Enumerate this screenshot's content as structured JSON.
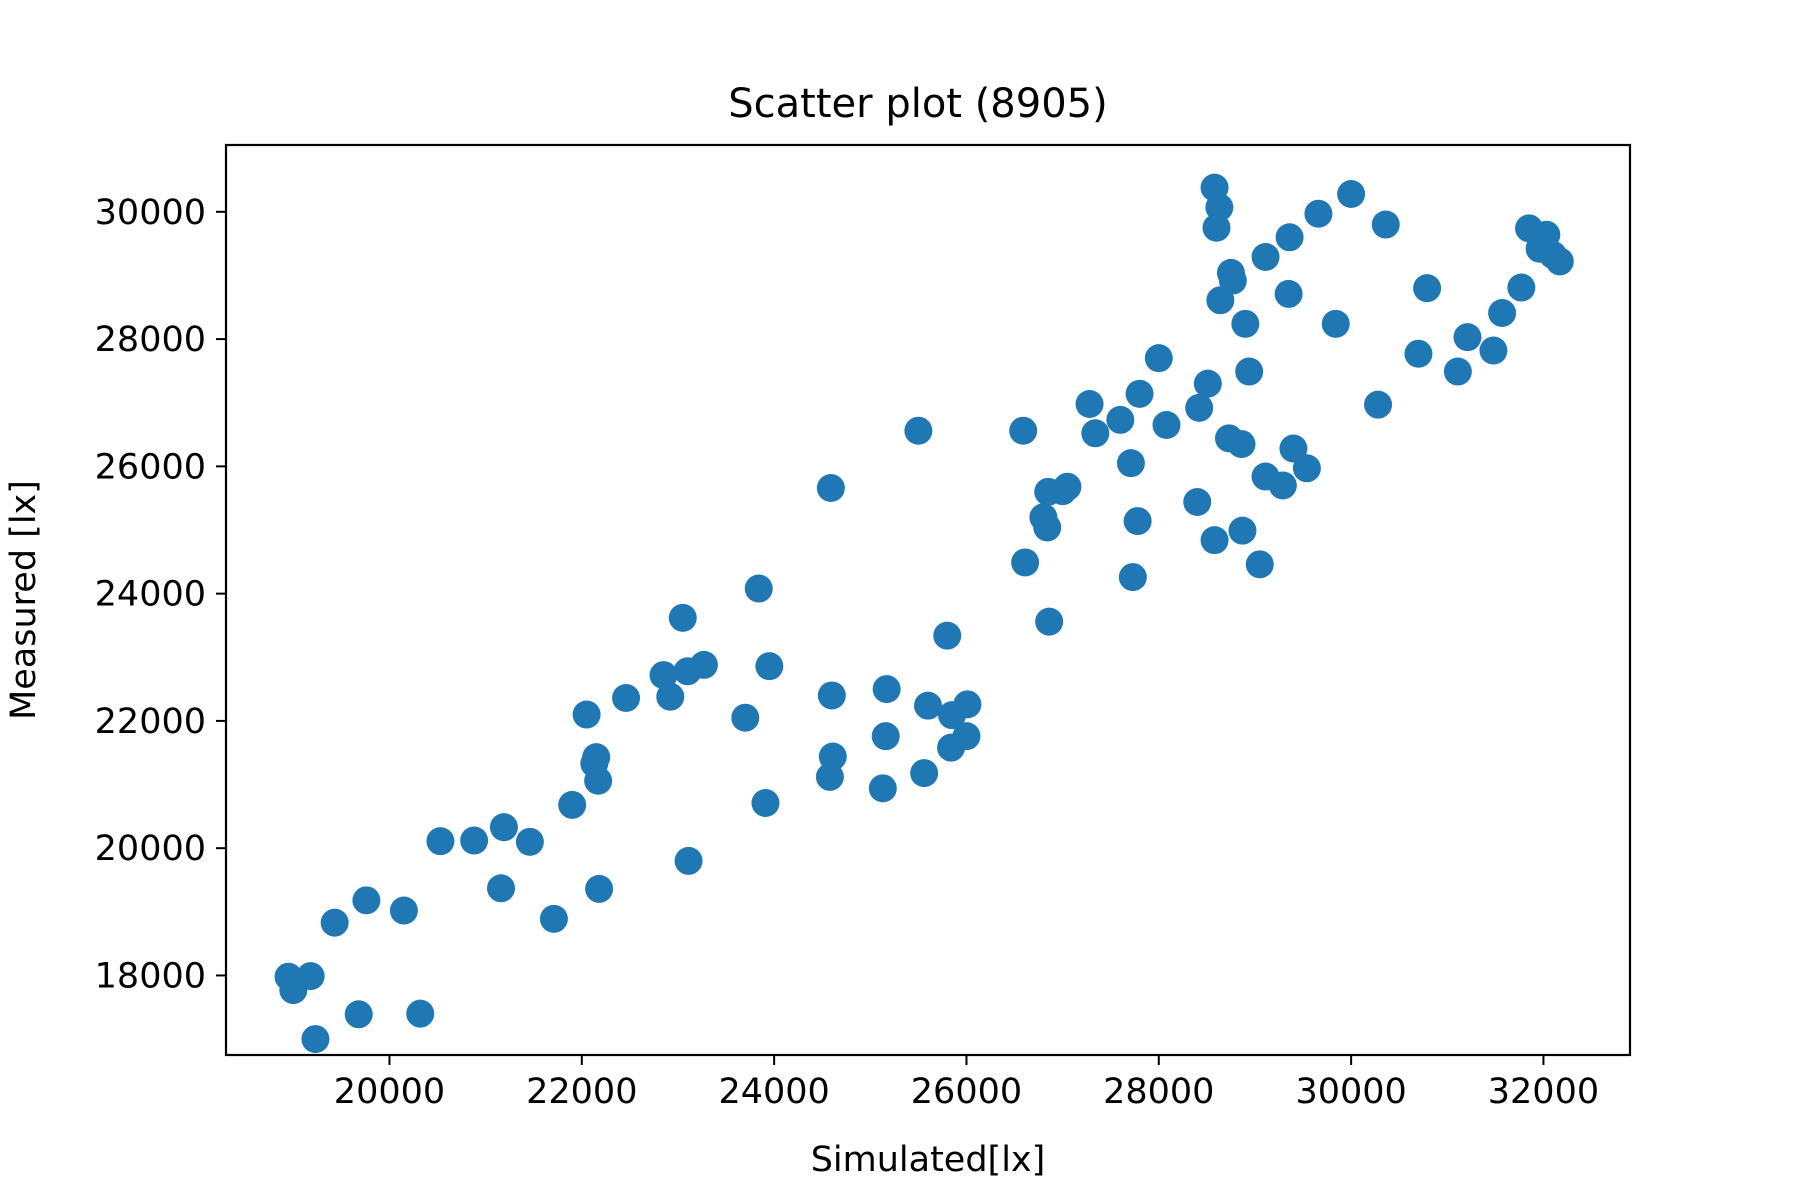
{
  "chart_data": {
    "type": "scatter",
    "title": "Scatter plot (8905)",
    "xlabel": "Simulated[lx]",
    "ylabel": "Measured [lx]",
    "xlim": [
      18300,
      32900
    ],
    "ylim": [
      16750,
      31050
    ],
    "xticks": [
      20000,
      22000,
      24000,
      26000,
      28000,
      30000,
      32000
    ],
    "yticks": [
      18000,
      20000,
      22000,
      24000,
      26000,
      28000,
      30000
    ],
    "grid": false,
    "legend": "none",
    "color": "#1f77b4",
    "points": [
      {
        "x": 18950,
        "y": 17980
      },
      {
        "x": 19000,
        "y": 17770
      },
      {
        "x": 19180,
        "y": 17990
      },
      {
        "x": 19230,
        "y": 17000
      },
      {
        "x": 19430,
        "y": 18830
      },
      {
        "x": 19680,
        "y": 17390
      },
      {
        "x": 19760,
        "y": 19180
      },
      {
        "x": 20150,
        "y": 19020
      },
      {
        "x": 20320,
        "y": 17400
      },
      {
        "x": 20530,
        "y": 20110
      },
      {
        "x": 20880,
        "y": 20120
      },
      {
        "x": 21160,
        "y": 19370
      },
      {
        "x": 21190,
        "y": 20330
      },
      {
        "x": 21460,
        "y": 20100
      },
      {
        "x": 21710,
        "y": 18890
      },
      {
        "x": 21900,
        "y": 20680
      },
      {
        "x": 22050,
        "y": 22100
      },
      {
        "x": 22130,
        "y": 21330
      },
      {
        "x": 22150,
        "y": 21430
      },
      {
        "x": 22170,
        "y": 21060
      },
      {
        "x": 22180,
        "y": 19360
      },
      {
        "x": 22460,
        "y": 22360
      },
      {
        "x": 22850,
        "y": 22720
      },
      {
        "x": 22920,
        "y": 22380
      },
      {
        "x": 23050,
        "y": 23620
      },
      {
        "x": 23100,
        "y": 22780
      },
      {
        "x": 23110,
        "y": 19800
      },
      {
        "x": 23270,
        "y": 22880
      },
      {
        "x": 23700,
        "y": 22050
      },
      {
        "x": 23840,
        "y": 24080
      },
      {
        "x": 23910,
        "y": 20710
      },
      {
        "x": 23950,
        "y": 22860
      },
      {
        "x": 24580,
        "y": 21120
      },
      {
        "x": 24590,
        "y": 25660
      },
      {
        "x": 24600,
        "y": 22400
      },
      {
        "x": 24610,
        "y": 21440
      },
      {
        "x": 25130,
        "y": 20940
      },
      {
        "x": 25160,
        "y": 21760
      },
      {
        "x": 25170,
        "y": 22500
      },
      {
        "x": 25500,
        "y": 26560
      },
      {
        "x": 25560,
        "y": 21180
      },
      {
        "x": 25600,
        "y": 22240
      },
      {
        "x": 25800,
        "y": 23340
      },
      {
        "x": 25840,
        "y": 21580
      },
      {
        "x": 25850,
        "y": 22090
      },
      {
        "x": 26000,
        "y": 21760
      },
      {
        "x": 26010,
        "y": 22260
      },
      {
        "x": 26590,
        "y": 26560
      },
      {
        "x": 26610,
        "y": 24490
      },
      {
        "x": 26800,
        "y": 25200
      },
      {
        "x": 26840,
        "y": 25040
      },
      {
        "x": 26850,
        "y": 25600
      },
      {
        "x": 26860,
        "y": 23560
      },
      {
        "x": 27000,
        "y": 25610
      },
      {
        "x": 27050,
        "y": 25680
      },
      {
        "x": 27280,
        "y": 26980
      },
      {
        "x": 27340,
        "y": 26520
      },
      {
        "x": 27600,
        "y": 26730
      },
      {
        "x": 27710,
        "y": 26050
      },
      {
        "x": 27730,
        "y": 24260
      },
      {
        "x": 27780,
        "y": 25140
      },
      {
        "x": 27800,
        "y": 27140
      },
      {
        "x": 28000,
        "y": 27700
      },
      {
        "x": 28080,
        "y": 26650
      },
      {
        "x": 28400,
        "y": 25440
      },
      {
        "x": 28420,
        "y": 26920
      },
      {
        "x": 28510,
        "y": 27300
      },
      {
        "x": 28580,
        "y": 24840
      },
      {
        "x": 28580,
        "y": 30380
      },
      {
        "x": 28600,
        "y": 29750
      },
      {
        "x": 28630,
        "y": 30070
      },
      {
        "x": 28640,
        "y": 28610
      },
      {
        "x": 28730,
        "y": 26440
      },
      {
        "x": 28750,
        "y": 29040
      },
      {
        "x": 28770,
        "y": 28920
      },
      {
        "x": 28860,
        "y": 26350
      },
      {
        "x": 28870,
        "y": 24990
      },
      {
        "x": 28900,
        "y": 28240
      },
      {
        "x": 28940,
        "y": 27490
      },
      {
        "x": 29050,
        "y": 24460
      },
      {
        "x": 29110,
        "y": 25840
      },
      {
        "x": 29110,
        "y": 29290
      },
      {
        "x": 29290,
        "y": 25700
      },
      {
        "x": 29350,
        "y": 28710
      },
      {
        "x": 29360,
        "y": 29600
      },
      {
        "x": 29400,
        "y": 26280
      },
      {
        "x": 29540,
        "y": 25970
      },
      {
        "x": 29660,
        "y": 29970
      },
      {
        "x": 29840,
        "y": 28240
      },
      {
        "x": 30000,
        "y": 30280
      },
      {
        "x": 30280,
        "y": 26970
      },
      {
        "x": 30360,
        "y": 29800
      },
      {
        "x": 30700,
        "y": 27770
      },
      {
        "x": 30790,
        "y": 28800
      },
      {
        "x": 31110,
        "y": 27490
      },
      {
        "x": 31210,
        "y": 28030
      },
      {
        "x": 31480,
        "y": 27820
      },
      {
        "x": 31570,
        "y": 28410
      },
      {
        "x": 31770,
        "y": 28810
      },
      {
        "x": 31850,
        "y": 29740
      },
      {
        "x": 31960,
        "y": 29420
      },
      {
        "x": 32030,
        "y": 29640
      },
      {
        "x": 32100,
        "y": 29320
      },
      {
        "x": 32170,
        "y": 29220
      }
    ]
  }
}
